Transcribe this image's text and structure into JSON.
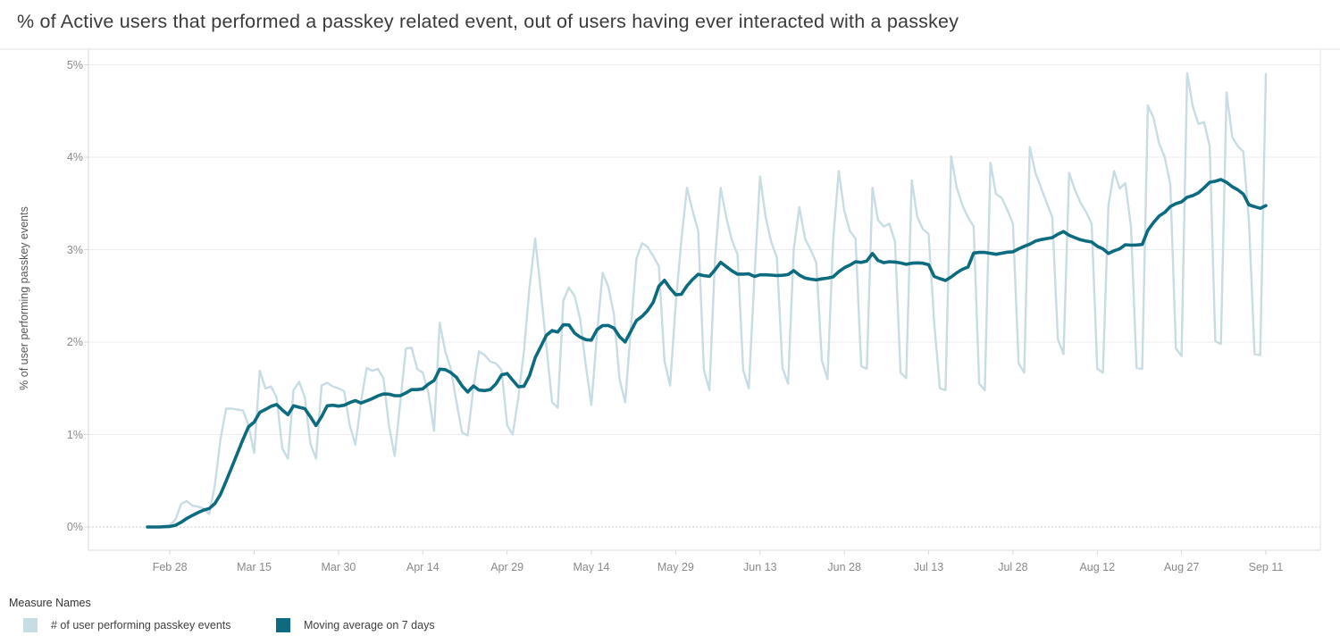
{
  "title": "% of Active users that performed a passkey related event, out of users having ever interacted with a passkey",
  "y_axis": {
    "label": "% of user performing passkey events",
    "ticks": [
      {
        "label": "0%",
        "value": 0
      },
      {
        "label": "1%",
        "value": 1
      },
      {
        "label": "2%",
        "value": 2
      },
      {
        "label": "3%",
        "value": 3
      },
      {
        "label": "4%",
        "value": 4
      },
      {
        "label": "5%",
        "value": 5
      }
    ]
  },
  "x_axis": {
    "ticks": [
      {
        "label": "Feb 28",
        "day_index": 4
      },
      {
        "label": "Mar 15",
        "day_index": 19
      },
      {
        "label": "Mar 30",
        "day_index": 34
      },
      {
        "label": "Apr 14",
        "day_index": 49
      },
      {
        "label": "Apr 29",
        "day_index": 64
      },
      {
        "label": "May 14",
        "day_index": 79
      },
      {
        "label": "May 29",
        "day_index": 94
      },
      {
        "label": "Jun 13",
        "day_index": 109
      },
      {
        "label": "Jun 28",
        "day_index": 124
      },
      {
        "label": "Jul 13",
        "day_index": 139
      },
      {
        "label": "Jul 28",
        "day_index": 154
      },
      {
        "label": "Aug 12",
        "day_index": 169
      },
      {
        "label": "Aug 27",
        "day_index": 184
      },
      {
        "label": "Sep 11",
        "day_index": 199
      }
    ]
  },
  "legend": {
    "title": "Measure Names",
    "items": [
      {
        "label": "# of user performing passkey events",
        "color": "#c7dce3"
      },
      {
        "label": "Moving average on 7 days",
        "color": "#0d6b80"
      }
    ]
  },
  "chart_data": {
    "type": "line",
    "title": "% of Active users that performed a passkey related event, out of users having ever interacted with a passkey",
    "xlabel": "",
    "ylabel": "% of user performing passkey events",
    "ylim": [
      0,
      5
    ],
    "y_unit": "percent",
    "x_start_date": "Feb 24",
    "x_end_date": "Sep 11",
    "grid": true,
    "legend_position": "bottom-left",
    "moving_average_window": 7,
    "series": [
      {
        "name": "# of user performing passkey events",
        "color": "#c7dce3",
        "style": "jagged daily line, weekly weekend dips",
        "values": [
          0.0,
          0.0,
          0.0,
          0.01,
          0.02,
          0.08,
          0.25,
          0.28,
          0.23,
          0.22,
          0.2,
          0.14,
          0.45,
          0.95,
          1.28,
          1.28,
          1.27,
          1.26,
          1.1,
          0.8,
          1.69,
          1.5,
          1.52,
          1.4,
          0.85,
          0.74,
          1.48,
          1.57,
          1.4,
          0.9,
          0.74,
          1.53,
          1.56,
          1.52,
          1.5,
          1.47,
          1.1,
          0.89,
          1.35,
          1.72,
          1.69,
          1.71,
          1.61,
          1.09,
          0.77,
          1.35,
          1.93,
          1.94,
          1.71,
          1.67,
          1.45,
          1.04,
          2.21,
          1.9,
          1.71,
          1.35,
          1.02,
          0.99,
          1.5,
          1.9,
          1.86,
          1.79,
          1.77,
          1.7,
          1.1,
          1.0,
          1.4,
          1.9,
          2.6,
          3.12,
          2.55,
          1.95,
          1.35,
          1.29,
          2.45,
          2.59,
          2.5,
          2.25,
          1.75,
          1.32,
          2.09,
          2.75,
          2.6,
          2.3,
          1.6,
          1.35,
          2.13,
          2.9,
          3.07,
          3.03,
          2.93,
          2.82,
          1.8,
          1.53,
          2.41,
          3.1,
          3.67,
          3.42,
          3.2,
          1.7,
          1.48,
          2.9,
          3.67,
          3.35,
          3.1,
          2.95,
          1.7,
          1.5,
          2.7,
          3.79,
          3.35,
          3.08,
          2.92,
          1.72,
          1.55,
          3.0,
          3.46,
          3.12,
          3.0,
          2.86,
          1.8,
          1.6,
          3.1,
          3.85,
          3.42,
          3.2,
          3.12,
          1.74,
          1.71,
          3.67,
          3.32,
          3.25,
          3.28,
          3.09,
          1.67,
          1.61,
          3.75,
          3.35,
          3.22,
          3.17,
          2.2,
          1.5,
          1.48,
          4.01,
          3.67,
          3.48,
          3.35,
          3.25,
          1.55,
          1.48,
          3.94,
          3.6,
          3.56,
          3.43,
          3.28,
          1.77,
          1.67,
          4.11,
          3.83,
          3.67,
          3.51,
          3.35,
          2.03,
          1.87,
          3.83,
          3.65,
          3.51,
          3.41,
          3.28,
          1.71,
          1.67,
          3.48,
          3.85,
          3.66,
          3.72,
          3.25,
          1.72,
          1.71,
          4.56,
          4.43,
          4.15,
          4.0,
          3.7,
          1.93,
          1.85,
          4.91,
          4.55,
          4.36,
          4.38,
          4.12,
          2.01,
          1.98,
          4.7,
          4.22,
          4.12,
          4.06,
          3.3,
          1.87,
          1.86,
          4.9
        ]
      },
      {
        "name": "Moving average on 7 days",
        "color": "#0d6b80",
        "derived_from": "# of user performing passkey events",
        "derivation": "trailing 7-day moving average of the daily series"
      }
    ]
  }
}
